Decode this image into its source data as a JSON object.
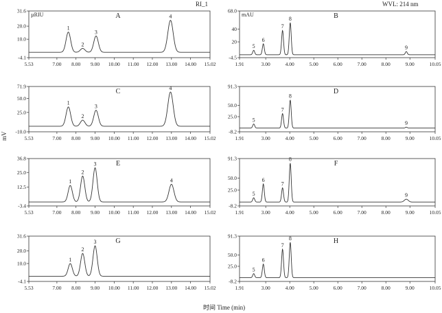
{
  "header": {
    "left_label": "RI_1",
    "right_label": "WVL: 214 nm",
    "y_axis_label": "mV",
    "x_axis_label": "时间 Time (min)"
  },
  "chart_data": [
    {
      "id": "A",
      "type": "line",
      "panel_label": "A",
      "unit": "µRIU",
      "xlim": [
        5.53,
        15.02
      ],
      "ylim": [
        -4.1,
        31.6
      ],
      "xticks": [
        "5.53",
        "7.00",
        "8.00",
        "9.00",
        "10.00",
        "11.00",
        "12.00",
        "13.00",
        "14.00",
        "15.02"
      ],
      "yticks": [
        "-4.1",
        "10.0",
        "20.0",
        "31.6"
      ],
      "baseline": 0,
      "peaks": [
        {
          "label": "1",
          "x": 7.6,
          "y": 15.5,
          "w": 0.12
        },
        {
          "label": "2",
          "x": 8.35,
          "y": 3.0,
          "w": 0.12
        },
        {
          "label": "3",
          "x": 9.05,
          "y": 12.5,
          "w": 0.12
        },
        {
          "label": "4",
          "x": 12.95,
          "y": 24.5,
          "w": 0.14
        }
      ]
    },
    {
      "id": "B",
      "type": "line",
      "panel_label": "B",
      "unit": "mAU",
      "xlim": [
        1.91,
        10.05
      ],
      "ylim": [
        -4.5,
        68.0
      ],
      "xticks": [
        "1.91",
        "3.00",
        "4.00",
        "5.00",
        "6.00",
        "7.00",
        "8.00",
        "9.00",
        "10.05"
      ],
      "yticks": [
        "-4.5",
        "20",
        "40",
        "68.0"
      ],
      "baseline": 0,
      "peaks": [
        {
          "label": "5",
          "x": 2.5,
          "y": 7,
          "w": 0.04
        },
        {
          "label": "6",
          "x": 2.9,
          "y": 17,
          "w": 0.04
        },
        {
          "label": "7",
          "x": 3.7,
          "y": 38,
          "w": 0.04
        },
        {
          "label": "8",
          "x": 4.02,
          "y": 50,
          "w": 0.04
        },
        {
          "label": "9",
          "x": 8.85,
          "y": 5,
          "w": 0.04
        }
      ]
    },
    {
      "id": "C",
      "type": "line",
      "panel_label": "C",
      "unit": "",
      "xlim": [
        5.53,
        15.02
      ],
      "ylim": [
        -10.0,
        71.9
      ],
      "xticks": [
        "5.53",
        "7.00",
        "8.00",
        "9.00",
        "10.00",
        "11.00",
        "12.00",
        "13.00",
        "14.00",
        "15.02"
      ],
      "yticks": [
        "-10.0",
        "25.0",
        "50.0",
        "71.9"
      ],
      "baseline": 0,
      "peaks": [
        {
          "label": "1",
          "x": 7.6,
          "y": 35,
          "w": 0.12
        },
        {
          "label": "2",
          "x": 8.35,
          "y": 11,
          "w": 0.12
        },
        {
          "label": "3",
          "x": 9.05,
          "y": 29,
          "w": 0.12
        },
        {
          "label": "4",
          "x": 12.95,
          "y": 62,
          "w": 0.14
        }
      ]
    },
    {
      "id": "D",
      "type": "line",
      "panel_label": "D",
      "unit": "",
      "xlim": [
        1.91,
        10.05
      ],
      "ylim": [
        -8.2,
        91.3
      ],
      "xticks": [
        "1.91",
        "3.00",
        "4.00",
        "5.00",
        "6.00",
        "7.00",
        "8.00",
        "9.00",
        "10.05"
      ],
      "yticks": [
        "-8.2",
        "25.0",
        "50.0",
        "91.3"
      ],
      "baseline": 0,
      "peaks": [
        {
          "label": "5",
          "x": 2.5,
          "y": 9,
          "w": 0.04
        },
        {
          "label": "7",
          "x": 3.7,
          "y": 32,
          "w": 0.04
        },
        {
          "label": "8",
          "x": 4.02,
          "y": 62,
          "w": 0.04
        },
        {
          "label": "9",
          "x": 8.85,
          "y": 2,
          "w": 0.04
        }
      ]
    },
    {
      "id": "E",
      "type": "line",
      "panel_label": "E",
      "unit": "",
      "xlim": [
        5.53,
        15.02
      ],
      "ylim": [
        -3.4,
        36.8
      ],
      "xticks": [
        "5.53",
        "7.00",
        "8.00",
        "9.00",
        "10.00",
        "11.00",
        "12.00",
        "13.00",
        "14.00",
        "15.02"
      ],
      "yticks": [
        "-3.4",
        "12.5",
        "25.0",
        "36.8"
      ],
      "baseline": 0,
      "peaks": [
        {
          "label": "1",
          "x": 7.7,
          "y": 14,
          "w": 0.11
        },
        {
          "label": "2",
          "x": 8.35,
          "y": 22,
          "w": 0.11
        },
        {
          "label": "3",
          "x": 9.0,
          "y": 29,
          "w": 0.11
        },
        {
          "label": "4",
          "x": 13.0,
          "y": 15,
          "w": 0.13
        }
      ]
    },
    {
      "id": "F",
      "type": "line",
      "panel_label": "F",
      "unit": "",
      "xlim": [
        1.91,
        10.05
      ],
      "ylim": [
        -8.2,
        91.3
      ],
      "xticks": [
        "1.91",
        "3.00",
        "4.00",
        "5.00",
        "6.00",
        "7.00",
        "8.00",
        "9.00",
        "10.05"
      ],
      "yticks": [
        "-8.2",
        "25.0",
        "50.0",
        "91.3"
      ],
      "baseline": 0,
      "peaks": [
        {
          "label": "5",
          "x": 2.5,
          "y": 9,
          "w": 0.04
        },
        {
          "label": "6",
          "x": 2.9,
          "y": 38,
          "w": 0.04
        },
        {
          "label": "7",
          "x": 3.7,
          "y": 30,
          "w": 0.04
        },
        {
          "label": "8",
          "x": 4.02,
          "y": 82,
          "w": 0.04
        },
        {
          "label": "9",
          "x": 8.85,
          "y": 6,
          "w": 0.08
        }
      ]
    },
    {
      "id": "G",
      "type": "line",
      "panel_label": "G",
      "unit": "",
      "xlim": [
        5.53,
        15.02
      ],
      "ylim": [
        -4.1,
        31.6
      ],
      "xticks": [
        "5.53",
        "7.00",
        "8.00",
        "9.00",
        "10.00",
        "11.00",
        "12.00",
        "13.00",
        "14.00",
        "15.02"
      ],
      "yticks": [
        "-4.1",
        "10.0",
        "20.0",
        "31.6"
      ],
      "baseline": 0,
      "peaks": [
        {
          "label": "1",
          "x": 7.7,
          "y": 10,
          "w": 0.11
        },
        {
          "label": "2",
          "x": 8.35,
          "y": 18,
          "w": 0.11
        },
        {
          "label": "3",
          "x": 9.0,
          "y": 24,
          "w": 0.11
        }
      ]
    },
    {
      "id": "H",
      "type": "line",
      "panel_label": "H",
      "unit": "",
      "xlim": [
        1.91,
        10.05
      ],
      "ylim": [
        -8.2,
        91.3
      ],
      "xticks": [
        "1.91",
        "3.00",
        "4.00",
        "5.00",
        "6.00",
        "7.00",
        "8.00",
        "9.00",
        "10.05"
      ],
      "yticks": [
        "-8.2",
        "25.0",
        "50.0",
        "91.3"
      ],
      "baseline": 0,
      "peaks": [
        {
          "label": "5",
          "x": 2.5,
          "y": 9,
          "w": 0.04
        },
        {
          "label": "6",
          "x": 2.9,
          "y": 30,
          "w": 0.04
        },
        {
          "label": "7",
          "x": 3.7,
          "y": 63,
          "w": 0.04
        },
        {
          "label": "8",
          "x": 4.02,
          "y": 78,
          "w": 0.04
        }
      ]
    }
  ]
}
